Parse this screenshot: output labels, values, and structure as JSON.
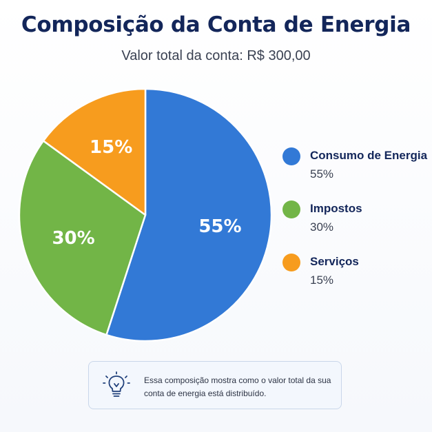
{
  "chart_data": {
    "type": "pie",
    "title": "Composição da Conta de Energia",
    "subtitle": "Valor total da conta: R$ 300,00",
    "slices": [
      {
        "label": "Consumo de Energia",
        "value": 55,
        "display": "55%",
        "color": "#3279d6"
      },
      {
        "label": "Impostos",
        "value": 30,
        "display": "30%",
        "color": "#72b547"
      },
      {
        "label": "Serviços",
        "value": 15,
        "display": "15%",
        "color": "#f79c1e"
      }
    ],
    "legend_position": "right"
  },
  "note": {
    "icon": "lightbulb-icon",
    "text": "Essa composição mostra como o valor total da sua conta de energia está distribuído."
  }
}
